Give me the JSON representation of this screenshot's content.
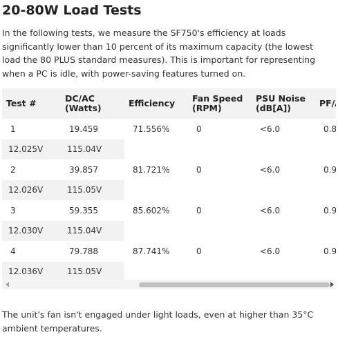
{
  "header": {
    "title": "20-80W Load Tests"
  },
  "intro": "In the following tests, we measure the SF750's efficiency at loads significantly lower than 10 percent of its maximum capacity (the lowest load the 80 PLUS standard measures). This is important for representing when a PC is idle, with power-saving features turned on.",
  "table": {
    "columns": [
      [
        "Test #"
      ],
      [
        "DC/AC",
        "(Watts)"
      ],
      [
        "Efficiency"
      ],
      [
        "Fan Speed",
        "(RPM)"
      ],
      [
        "PSU Noise",
        "(dB[A])"
      ],
      [
        "PF/A"
      ]
    ],
    "rows": [
      [
        "1",
        "19.459",
        "71.556%",
        "0",
        "<6.0",
        "0.8"
      ],
      [
        "12.025V",
        "115.04V"
      ],
      [
        "2",
        "39.857",
        "81.721%",
        "0",
        "<6.0",
        "0.9"
      ],
      [
        "12.026V",
        "115.05V"
      ],
      [
        "3",
        "59.355",
        "85.602%",
        "0",
        "<6.0",
        "0.9"
      ],
      [
        "12.030V",
        "115.04V"
      ],
      [
        "4",
        "79.788",
        "87.741%",
        "0",
        "<6.0",
        "0.9"
      ],
      [
        "12.036V",
        "115.05V"
      ]
    ]
  },
  "outro": "The unit's fan isn't engaged under light loads, even at higher than 35°C ambient temperatures."
}
